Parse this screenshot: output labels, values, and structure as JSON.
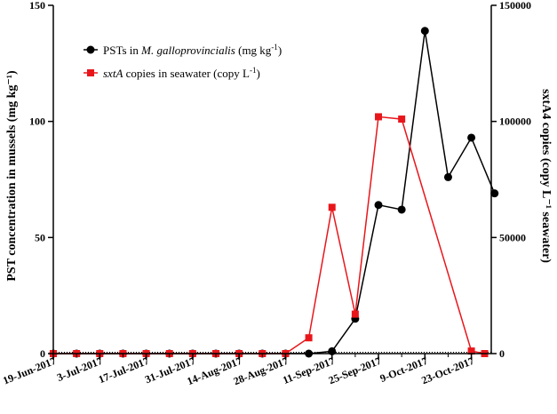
{
  "chart_data": {
    "type": "line",
    "x_tick_labels": [
      "19-Jun-2017",
      "3-Jul-2017",
      "17-Jul-2017",
      "31-Jul-2017",
      "14-Aug-2017",
      "28-Aug-2017",
      "11-Sep-2017",
      "25-Sep-2017",
      "9-Oct-2017",
      "23-Oct-2017"
    ],
    "y_left": {
      "label": "PST concentration in mussels (mg kg⁻¹)",
      "ticks": [
        "0",
        "50",
        "100",
        "150"
      ],
      "lim": [
        0,
        150
      ]
    },
    "y_right": {
      "label": "sxtA4 copies (copy L⁻¹ seawater)",
      "ticks": [
        "0",
        "50000",
        "100000",
        "150000"
      ],
      "lim": [
        0,
        150000
      ]
    },
    "legend_placement": "top-left",
    "series": [
      {
        "name": "PSTs in M. galloprovincialis (mg kg⁻¹)",
        "legend_parts": [
          "PSTs in ",
          "M. galloprovincialis",
          " (mg kg",
          "-1",
          ")"
        ],
        "axis": "left",
        "color": "#000000",
        "marker": "circle",
        "x": [
          "2017-06-19",
          "2017-06-26",
          "2017-07-03",
          "2017-07-10",
          "2017-07-17",
          "2017-07-24",
          "2017-07-31",
          "2017-08-07",
          "2017-08-14",
          "2017-08-21",
          "2017-08-28",
          "2017-09-04",
          "2017-09-11",
          "2017-09-18",
          "2017-09-25",
          "2017-10-02",
          "2017-10-09",
          "2017-10-16",
          "2017-10-23",
          "2017-10-30"
        ],
        "y": [
          0,
          0,
          0,
          0,
          0,
          0,
          0,
          0,
          0,
          0,
          0,
          0,
          1,
          15,
          64,
          62,
          139,
          76,
          93,
          69
        ]
      },
      {
        "name": "sxtA copies in seawater (copy L⁻¹)",
        "legend_parts": [
          "sxtA",
          " copies in seawater (copy L",
          "-1",
          ")"
        ],
        "axis": "right",
        "color": "#e8161b",
        "marker": "square",
        "x": [
          "2017-06-19",
          "2017-06-26",
          "2017-07-03",
          "2017-07-10",
          "2017-07-17",
          "2017-07-24",
          "2017-07-31",
          "2017-08-07",
          "2017-08-14",
          "2017-08-21",
          "2017-08-28",
          "2017-09-04",
          "2017-09-11",
          "2017-09-18",
          "2017-09-25",
          "2017-10-02",
          "2017-10-23",
          "2017-10-27"
        ],
        "y": [
          0,
          0,
          0,
          0,
          0,
          0,
          0,
          0,
          0,
          0,
          0,
          6800,
          63000,
          17000,
          102000,
          101000,
          1100,
          0
        ]
      }
    ]
  }
}
